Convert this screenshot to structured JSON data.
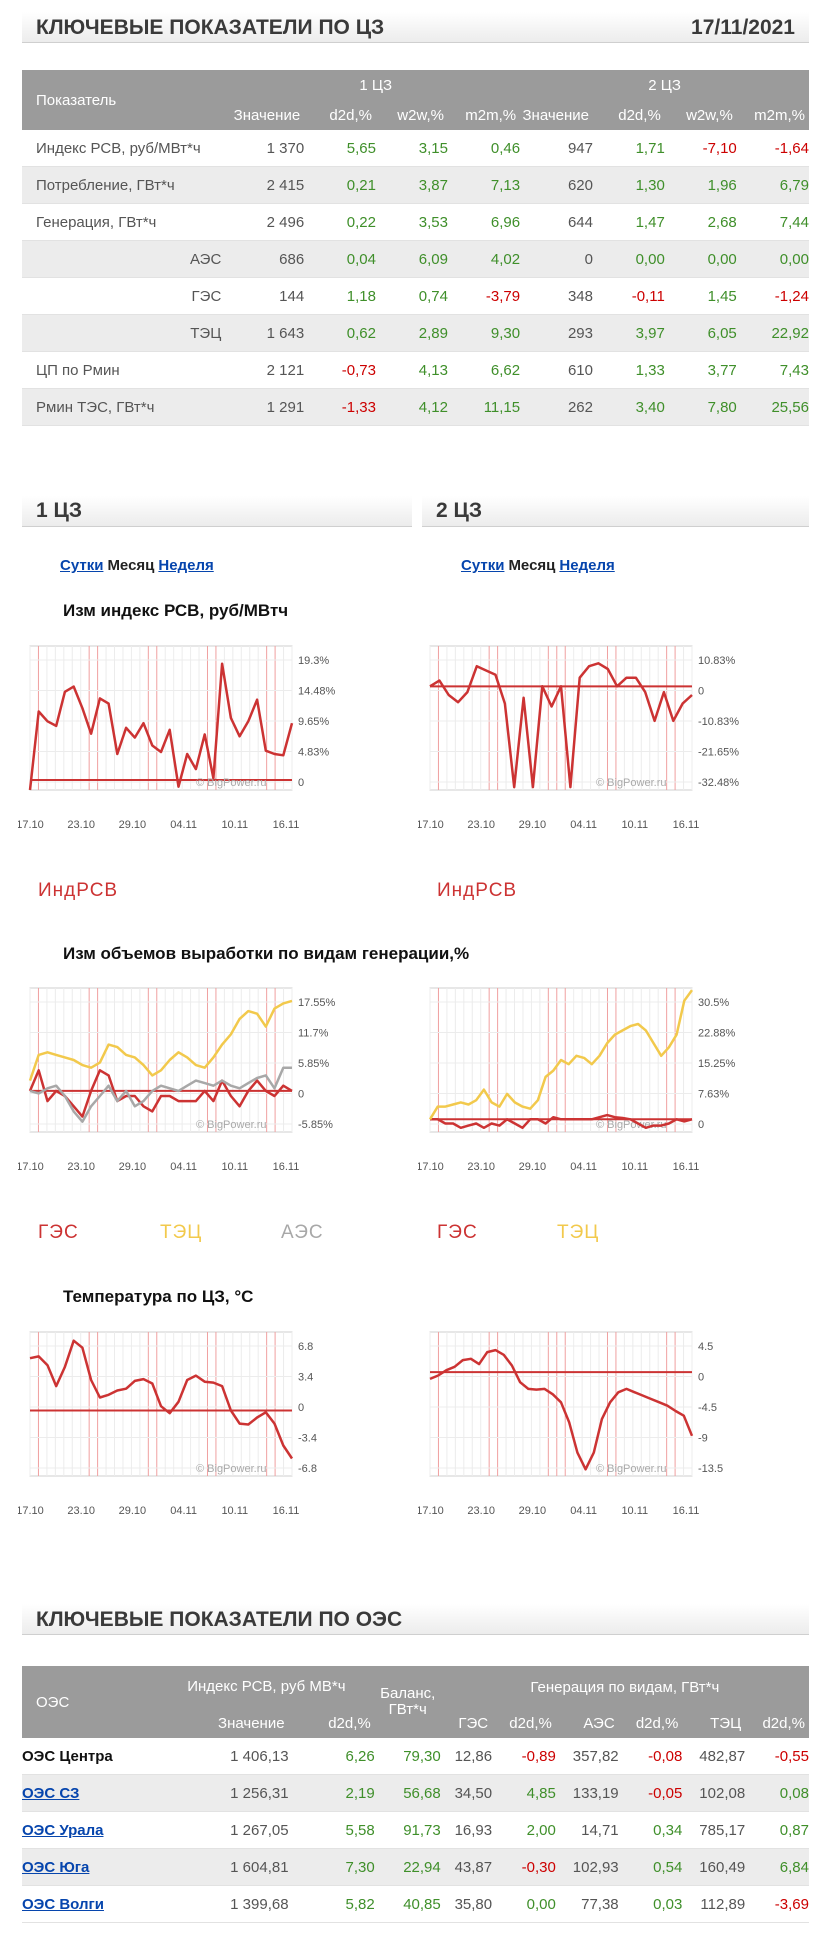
{
  "header": {
    "title": "КЛЮЧЕВЫЕ ПОКАЗАТЕЛИ ПО ЦЗ",
    "date": "17/11/2021"
  },
  "zone_table": {
    "col_indicator": "Показатель",
    "groups": [
      "1 ЦЗ",
      "2 ЦЗ"
    ],
    "cols": [
      "Значение",
      "d2d,%",
      "w2w,%",
      "m2m,%",
      "Значение",
      "d2d,%",
      "w2w,%",
      "m2m,%"
    ],
    "rows": [
      {
        "label": "Индекс РСВ, руб/МВт*ч",
        "indent": false,
        "values": [
          "1 370",
          "5,65",
          "3,15",
          "0,46",
          "947",
          "1,71",
          "-7,10",
          "-1,64"
        ]
      },
      {
        "label": "Потребление, ГВт*ч",
        "indent": false,
        "values": [
          "2 415",
          "0,21",
          "3,87",
          "7,13",
          "620",
          "1,30",
          "1,96",
          "6,79"
        ]
      },
      {
        "label": "Генерация, ГВт*ч",
        "indent": false,
        "values": [
          "2 496",
          "0,22",
          "3,53",
          "6,96",
          "644",
          "1,47",
          "2,68",
          "7,44"
        ]
      },
      {
        "label": "АЭС",
        "indent": true,
        "values": [
          "686",
          "0,04",
          "6,09",
          "4,02",
          "0",
          "0,00",
          "0,00",
          "0,00"
        ]
      },
      {
        "label": "ГЭС",
        "indent": true,
        "values": [
          "144",
          "1,18",
          "0,74",
          "-3,79",
          "348",
          "-0,11",
          "1,45",
          "-1,24"
        ]
      },
      {
        "label": "ТЭЦ",
        "indent": true,
        "values": [
          "1 643",
          "0,62",
          "2,89",
          "9,30",
          "293",
          "3,97",
          "6,05",
          "22,92"
        ]
      },
      {
        "label": "ЦП по Рмин",
        "indent": false,
        "values": [
          "2 121",
          "-0,73",
          "4,13",
          "6,62",
          "610",
          "1,33",
          "3,77",
          "7,43"
        ]
      },
      {
        "label": "Рмин ТЭС, ГВт*ч",
        "indent": false,
        "values": [
          "1 291",
          "-1,33",
          "4,12",
          "11,15",
          "262",
          "3,40",
          "7,80",
          "25,56"
        ]
      }
    ]
  },
  "zone1": {
    "title": "1 ЦЗ",
    "tab_day": "Сутки",
    "tab_month": "Месяц",
    "tab_week": "Неделя"
  },
  "zone2": {
    "title": "2 ЦЗ",
    "tab_day": "Сутки",
    "tab_month": "Месяц",
    "tab_week": "Неделя"
  },
  "chart_titles": {
    "price": "Изм индекс РСВ, руб/МВтч",
    "generation": "Изм объемов выработки по видам генерации,%",
    "temperature": "Температура по ЦЗ, °C"
  },
  "watermark": "© BigPower.ru",
  "colors": {
    "red": "#cc3333",
    "yellow": "#f2c94c",
    "gray": "#a8a8a8",
    "link": "#0645ad",
    "positive": "#3f8f2a",
    "negative": "#cc0000"
  },
  "chart_data": [
    {
      "id": "price-z1",
      "type": "line",
      "x_ticks": [
        "17.10",
        "23.10",
        "29.10",
        "04.11",
        "10.11",
        "16.11"
      ],
      "y_ticks": [
        "19.3%",
        "14.48%",
        "9.65%",
        "4.83%",
        "0"
      ],
      "ylim": [
        0,
        22
      ],
      "series": [
        {
          "name": "ИндРСВ",
          "color": "#cc3333",
          "values": [
            0,
            12,
            10.5,
            9.8,
            15,
            15.8,
            12.5,
            8.6,
            14,
            13.2,
            5.5,
            9.5,
            8,
            10.2,
            6.8,
            5.8,
            9.2,
            0.5,
            5.5,
            3.2,
            8.5,
            1.8,
            19.3,
            11,
            8.2,
            10.5,
            13.8,
            6,
            5.5,
            5.3,
            10.2
          ]
        }
      ]
    },
    {
      "id": "price-z2",
      "type": "line",
      "x_ticks": [
        "17.10",
        "23.10",
        "29.10",
        "04.11",
        "10.11",
        "16.11"
      ],
      "y_ticks": [
        "10.83%",
        "0",
        "-10.83%",
        "-21.65%",
        "-32.48%"
      ],
      "ylim": [
        -36,
        14
      ],
      "series": [
        {
          "name": "ИндРСВ",
          "color": "#cc3333",
          "values": [
            0,
            2,
            -3,
            -5.5,
            -2,
            7,
            5.5,
            4,
            -6,
            -35,
            -4,
            -35,
            0,
            -7,
            0,
            -35,
            3,
            7,
            8,
            6,
            0,
            3,
            3,
            -2,
            -12,
            -2,
            -12,
            -6,
            -3
          ]
        }
      ]
    },
    {
      "id": "gen-z1",
      "type": "line",
      "x_ticks": [
        "17.10",
        "23.10",
        "29.10",
        "04.11",
        "10.11",
        "16.11"
      ],
      "y_ticks": [
        "17.55%",
        "11.7%",
        "5.85%",
        "0",
        "-5.85%"
      ],
      "ylim": [
        -8,
        20
      ],
      "series": [
        {
          "name": "ГЭС",
          "color": "#cc3333",
          "values": [
            0,
            4,
            -2,
            0,
            -1,
            -3,
            -5,
            0,
            4,
            3,
            -2,
            -1,
            -1,
            -3,
            -4,
            -1,
            -1,
            -2,
            -2,
            -2,
            0,
            -2,
            2,
            -1,
            -3,
            0,
            2,
            0,
            -1,
            1,
            0
          ]
        },
        {
          "name": "ТЭЦ",
          "color": "#f2c94c",
          "values": [
            2,
            7,
            7.5,
            7,
            6.5,
            6,
            5,
            4.5,
            5.5,
            9,
            8.5,
            7,
            6.5,
            5,
            3,
            4,
            6,
            7.5,
            6.5,
            5,
            4.5,
            6.5,
            9,
            11,
            14,
            15.5,
            15,
            12.5,
            16,
            17,
            17.5
          ]
        },
        {
          "name": "АЭС",
          "color": "#a8a8a8",
          "values": [
            0,
            -0.5,
            0.5,
            1,
            -1,
            -4,
            -6,
            -3,
            -1,
            1,
            -2,
            0,
            -3,
            -2,
            0,
            1,
            0.5,
            0,
            1,
            2,
            1.5,
            1,
            2,
            1,
            0.5,
            1.5,
            2.5,
            3,
            0.5,
            4.5,
            4.5
          ]
        }
      ]
    },
    {
      "id": "gen-z2",
      "type": "line",
      "x_ticks": [
        "17.10",
        "23.10",
        "29.10",
        "04.11",
        "10.11",
        "16.11"
      ],
      "y_ticks": [
        "30.5%",
        "22.88%",
        "15.25%",
        "7.63%",
        "0"
      ],
      "ylim": [
        -3,
        31
      ],
      "series": [
        {
          "name": "ГЭС",
          "color": "#cc3333",
          "values": [
            0,
            0,
            -1,
            -1,
            -2,
            -1.5,
            -1,
            -2,
            -1,
            -1.5,
            0,
            -1,
            -2,
            0,
            0,
            -1,
            0.5,
            0,
            0,
            0,
            0,
            0,
            0.5,
            1,
            0.5,
            0.3,
            0,
            -1,
            -2,
            -1.5,
            -1.5,
            -1,
            0,
            -0.5,
            0
          ]
        },
        {
          "name": "ТЭЦ",
          "color": "#f2c94c",
          "values": [
            0,
            3,
            3,
            3.5,
            4,
            3.5,
            4.5,
            7,
            4,
            3,
            6,
            4,
            3,
            2.5,
            4.5,
            10,
            11.5,
            14,
            13,
            15,
            14.5,
            13,
            15,
            18,
            20,
            21,
            22,
            22.5,
            21,
            18,
            15,
            17,
            20,
            28,
            30.5
          ]
        }
      ]
    },
    {
      "id": "temp-z1",
      "type": "line",
      "x_ticks": [
        "17.10",
        "23.10",
        "29.10",
        "04.11",
        "10.11",
        "16.11"
      ],
      "y_ticks": [
        "6.8",
        "3.4",
        "0",
        "-3.4",
        "-6.8"
      ],
      "ylim": [
        -7.5,
        9
      ],
      "series": [
        {
          "name": "Температура",
          "color": "#cc3333",
          "values": [
            6,
            6.2,
            5.2,
            2.8,
            5,
            8,
            7.2,
            3.5,
            1.5,
            1.8,
            2.3,
            2.5,
            3.4,
            3.6,
            3.1,
            0.5,
            -0.3,
            1,
            3.5,
            4,
            3.3,
            3.2,
            2.8,
            0,
            -1.5,
            -1.6,
            -0.8,
            -0.2,
            -1.5,
            -4,
            -5.5
          ]
        }
      ]
    },
    {
      "id": "temp-z2",
      "type": "line",
      "x_ticks": [
        "17.10",
        "23.10",
        "29.10",
        "04.11",
        "10.11",
        "16.11"
      ],
      "y_ticks": [
        "4.5",
        "0",
        "-4.5",
        "-9",
        "-13.5"
      ],
      "ylim": [
        -15.5,
        6
      ],
      "series": [
        {
          "name": "Температура",
          "color": "#cc3333",
          "values": [
            -1,
            -0.5,
            0.3,
            0.8,
            1.8,
            2,
            1.2,
            3,
            3.3,
            2.6,
            1,
            -1.5,
            -2.5,
            -2.6,
            -2.5,
            -3.3,
            -4.5,
            -7.5,
            -12,
            -14.5,
            -12,
            -7,
            -4.5,
            -3,
            -2.5,
            -3,
            -3.5,
            -4,
            -4.5,
            -5,
            -5.8,
            -6.5,
            -9.5
          ]
        }
      ]
    }
  ],
  "legends": {
    "price": [
      "ИндРСВ"
    ],
    "gen_z1": [
      "ГЭС",
      "ТЭЦ",
      "АЭС"
    ],
    "gen_z2": [
      "ГЭС",
      "ТЭЦ"
    ]
  },
  "oes_header": {
    "title": "КЛЮЧЕВЫЕ ПОКАЗАТЕЛИ ПО ОЭС"
  },
  "oes_table": {
    "col_oes": "ОЭС",
    "col_index": "Индекс РСВ, руб МВ*ч",
    "col_balance": "Баланс, ГВт*ч",
    "col_generation": "Генерация по видам, ГВт*ч",
    "subcols": [
      "Значение",
      "d2d,%",
      "ГЭС",
      "d2d,%",
      "АЭС",
      "d2d,%",
      "ТЭЦ",
      "d2d,%"
    ],
    "rows": [
      {
        "name": "ОЭС Центра",
        "link": false,
        "values": [
          "1 406,13",
          "6,26",
          "79,30",
          "12,86",
          "-0,89",
          "357,82",
          "-0,08",
          "482,87",
          "-0,55"
        ]
      },
      {
        "name": "ОЭС СЗ",
        "link": true,
        "values": [
          "1 256,31",
          "2,19",
          "56,68",
          "34,50",
          "4,85",
          "133,19",
          "-0,05",
          "102,08",
          "0,08"
        ]
      },
      {
        "name": "ОЭС Урала",
        "link": true,
        "values": [
          "1 267,05",
          "5,58",
          "91,73",
          "16,93",
          "2,00",
          "14,71",
          "0,34",
          "785,17",
          "0,87"
        ]
      },
      {
        "name": "ОЭС Юга",
        "link": true,
        "values": [
          "1 604,81",
          "7,30",
          "22,94",
          "43,87",
          "-0,30",
          "102,93",
          "0,54",
          "160,49",
          "6,84"
        ]
      },
      {
        "name": "ОЭС Волги",
        "link": true,
        "values": [
          "1 399,68",
          "5,82",
          "40,85",
          "35,80",
          "0,00",
          "77,38",
          "0,03",
          "112,89",
          "-3,69"
        ]
      }
    ]
  }
}
